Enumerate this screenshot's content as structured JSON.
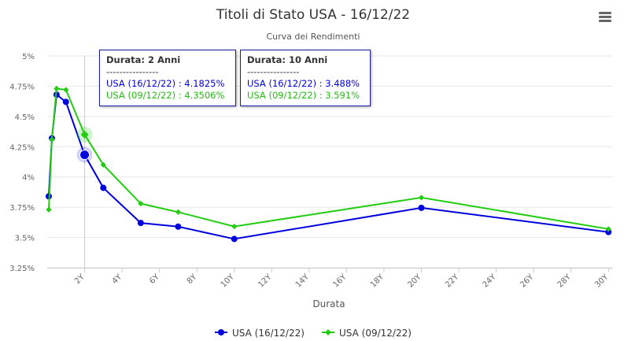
{
  "header": {
    "title": "Titoli di Stato USA - 16/12/22",
    "subtitle": "Curva dei Rendimenti"
  },
  "menu_icon": "hamburger-menu-icon",
  "colors": {
    "series1": "#0000dd",
    "series2": "#22cc11",
    "grid": "#e6e6e6",
    "crosshair": "#cccccc",
    "tooltip_border": "#1a1aa6"
  },
  "tooltips": [
    {
      "heading": "Durata: 2 Anni",
      "separator": "----------------",
      "line1": "USA (16/12/22) : 4.1825%",
      "line2": "USA (09/12/22) : 4.3506%"
    },
    {
      "heading": "Durata: 10 Anni",
      "separator": "----------------",
      "line1": "USA (16/12/22) : 3.488%",
      "line2": "USA (09/12/22) : 3.591%"
    }
  ],
  "chart_data": {
    "type": "line",
    "title": "Titoli di Stato USA - 16/12/22",
    "subtitle": "Curva dei Rendimenti",
    "xlabel": "Durata",
    "ylabel": "",
    "xlim": [
      0,
      30.2
    ],
    "ylim": [
      3.25,
      5
    ],
    "x_ticks": [
      "2Y",
      "4Y",
      "6Y",
      "8Y",
      "10Y",
      "12Y",
      "14Y",
      "16Y",
      "18Y",
      "20Y",
      "22Y",
      "24Y",
      "26Y",
      "28Y",
      "30Y"
    ],
    "x_tick_values": [
      2,
      4,
      6,
      8,
      10,
      12,
      14,
      16,
      18,
      20,
      22,
      24,
      26,
      28,
      30
    ],
    "y_ticks": [
      "3.25%",
      "3.5%",
      "3.75%",
      "4%",
      "4.25%",
      "4.5%",
      "4.75%",
      "5%"
    ],
    "y_tick_values": [
      3.25,
      3.5,
      3.75,
      4,
      4.25,
      4.5,
      4.75,
      5
    ],
    "grid": true,
    "legend_position": "bottom-center",
    "series": [
      {
        "name": "USA (16/12/22)",
        "marker": "circle",
        "color": "#0000dd",
        "x": [
          0.083,
          0.25,
          0.5,
          1,
          2,
          3,
          5,
          7,
          10,
          20,
          30
        ],
        "y": [
          3.84,
          4.32,
          4.68,
          4.62,
          4.1825,
          3.91,
          3.62,
          3.59,
          3.488,
          3.745,
          3.545
        ]
      },
      {
        "name": "USA (09/12/22)",
        "marker": "diamond",
        "color": "#22cc11",
        "x": [
          0.083,
          0.25,
          0.5,
          1,
          2,
          3,
          5,
          7,
          10,
          20,
          30
        ],
        "y": [
          3.73,
          4.31,
          4.73,
          4.72,
          4.3506,
          4.1,
          3.78,
          3.71,
          3.591,
          3.83,
          3.57
        ]
      }
    ],
    "highlight_x": 2
  }
}
